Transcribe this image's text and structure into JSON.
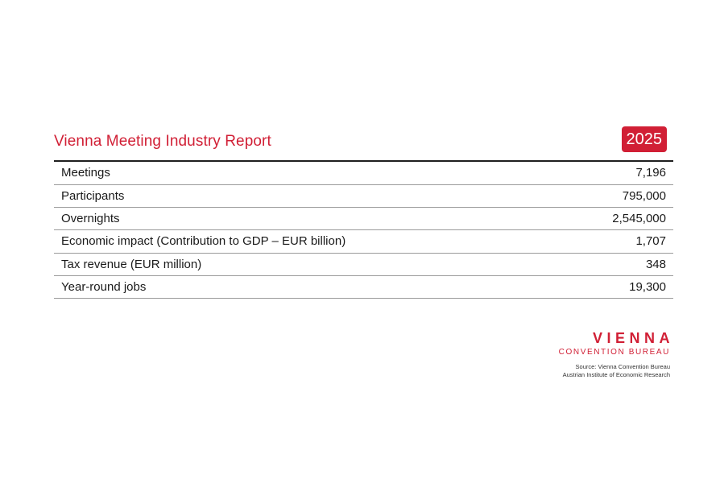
{
  "report": {
    "title": "Vienna Meeting Industry Report",
    "year": "2025",
    "accent_color": "#d11f35",
    "rows": [
      {
        "label": "Meetings",
        "value": "7,196"
      },
      {
        "label": "Participants",
        "value": "795,000"
      },
      {
        "label": "Overnights",
        "value": "2,545,000"
      },
      {
        "label": "Economic impact (Contribution to GDP – EUR billion)",
        "value": "1,707"
      },
      {
        "label": "Tax revenue (EUR million)",
        "value": "348"
      },
      {
        "label": "Year-round jobs",
        "value": "19,300"
      }
    ]
  },
  "brand": {
    "name": "VIENNA",
    "subtitle": "CONVENTION BUREAU"
  },
  "source": {
    "line1": "Source: Vienna Convention Bureau",
    "line2": "Austrian Institute of Economic Research"
  }
}
